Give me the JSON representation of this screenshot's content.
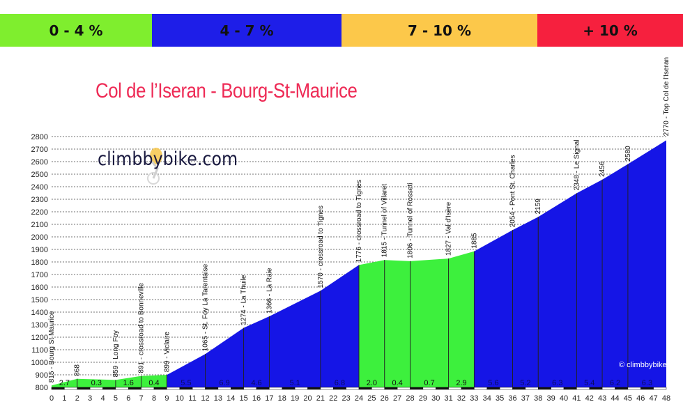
{
  "legend": [
    {
      "label": "0 - 4 %",
      "color": "#7fee2e"
    },
    {
      "label": "4 - 7 %",
      "color": "#1e1ee8"
    },
    {
      "label": "7 - 10 %",
      "color": "#fcc84a"
    },
    {
      "label": "+ 10 %",
      "color": "#f6203e"
    }
  ],
  "colors": {
    "easy": "#3df03d",
    "moderate": "#1515e6",
    "title": "#ee2a55"
  },
  "watermark": "climbbybike.com",
  "credit": "© climbbybike",
  "chart_data": {
    "type": "area",
    "title": "Col de l’Iseran - Bourg-St-Maurice",
    "xlim": [
      0,
      48
    ],
    "ylim": [
      800,
      2800
    ],
    "x_ticks": [
      0,
      1,
      2,
      3,
      4,
      5,
      6,
      7,
      8,
      9,
      10,
      11,
      12,
      13,
      14,
      15,
      16,
      17,
      18,
      19,
      20,
      21,
      22,
      23,
      24,
      25,
      26,
      27,
      28,
      29,
      30,
      31,
      32,
      33,
      34,
      35,
      36,
      37,
      38,
      39,
      40,
      41,
      42,
      43,
      44,
      45,
      46,
      47,
      48
    ],
    "y_ticks": [
      800,
      900,
      1000,
      1100,
      1200,
      1300,
      1400,
      1500,
      1600,
      1700,
      1800,
      1900,
      2000,
      2100,
      2200,
      2300,
      2400,
      2500,
      2600,
      2700,
      2800
    ],
    "profile": [
      {
        "x": 0,
        "y": 815
      },
      {
        "x": 2,
        "y": 868
      },
      {
        "x": 3,
        "y": 865
      },
      {
        "x": 5,
        "y": 859
      },
      {
        "x": 7,
        "y": 891
      },
      {
        "x": 9,
        "y": 899
      },
      {
        "x": 12,
        "y": 1065
      },
      {
        "x": 15,
        "y": 1274
      },
      {
        "x": 17,
        "y": 1366
      },
      {
        "x": 21,
        "y": 1570
      },
      {
        "x": 24,
        "y": 1776
      },
      {
        "x": 26,
        "y": 1815
      },
      {
        "x": 28,
        "y": 1806
      },
      {
        "x": 31,
        "y": 1827
      },
      {
        "x": 33,
        "y": 1885
      },
      {
        "x": 36,
        "y": 2054
      },
      {
        "x": 38,
        "y": 2159
      },
      {
        "x": 41,
        "y": 2348
      },
      {
        "x": 43,
        "y": 2456
      },
      {
        "x": 45,
        "y": 2580
      },
      {
        "x": 48,
        "y": 2770
      }
    ],
    "segments": [
      {
        "from": 0,
        "to": 2,
        "gradient": "2.7",
        "class": "easy"
      },
      {
        "from": 2,
        "to": 5,
        "gradient": "0.3",
        "class": "easy"
      },
      {
        "from": 5,
        "to": 7,
        "gradient": "1.6",
        "class": "easy"
      },
      {
        "from": 7,
        "to": 9,
        "gradient": "0.4",
        "class": "easy"
      },
      {
        "from": 9,
        "to": 12,
        "gradient": "5.5",
        "class": "moderate"
      },
      {
        "from": 12,
        "to": 15,
        "gradient": "6.9",
        "class": "moderate"
      },
      {
        "from": 15,
        "to": 17,
        "gradient": "4.6",
        "class": "moderate"
      },
      {
        "from": 17,
        "to": 21,
        "gradient": "5.1",
        "class": "moderate"
      },
      {
        "from": 21,
        "to": 24,
        "gradient": "6.8",
        "class": "moderate"
      },
      {
        "from": 24,
        "to": 26,
        "gradient": "2.0",
        "class": "easy"
      },
      {
        "from": 26,
        "to": 28,
        "gradient": "0.4",
        "class": "easy"
      },
      {
        "from": 28,
        "to": 31,
        "gradient": "0.7",
        "class": "easy"
      },
      {
        "from": 31,
        "to": 33,
        "gradient": "2.9",
        "class": "easy"
      },
      {
        "from": 33,
        "to": 36,
        "gradient": "5.6",
        "class": "moderate"
      },
      {
        "from": 36,
        "to": 38,
        "gradient": "5.2",
        "class": "moderate"
      },
      {
        "from": 38,
        "to": 41,
        "gradient": "6.3",
        "class": "moderate"
      },
      {
        "from": 41,
        "to": 43,
        "gradient": "5.4",
        "class": "moderate"
      },
      {
        "from": 43,
        "to": 45,
        "gradient": "6.2",
        "class": "moderate"
      },
      {
        "from": 45,
        "to": 48,
        "gradient": "6.3",
        "class": "moderate"
      }
    ],
    "annotations": [
      {
        "x": 0,
        "y": 815,
        "label": "815 - Bourg St Maurice"
      },
      {
        "x": 2,
        "y": 868,
        "label": "868"
      },
      {
        "x": 5,
        "y": 859,
        "label": "859 - Long Foy"
      },
      {
        "x": 7,
        "y": 891,
        "label": "891 - crossroad to Bonneville"
      },
      {
        "x": 9,
        "y": 899,
        "label": "899 - Viclaire"
      },
      {
        "x": 12,
        "y": 1065,
        "label": "1065 - St. Foy La Tarentaise"
      },
      {
        "x": 15,
        "y": 1274,
        "label": "1274 - La Thuile"
      },
      {
        "x": 17,
        "y": 1366,
        "label": "1366 - La Raie"
      },
      {
        "x": 21,
        "y": 1570,
        "label": "1570 - crossroad to Tignes"
      },
      {
        "x": 24,
        "y": 1776,
        "label": "1776 - crossroad to Tignes"
      },
      {
        "x": 26,
        "y": 1815,
        "label": "1815 - Tunnel of Villaret"
      },
      {
        "x": 28,
        "y": 1806,
        "label": "1806 - Tunnel of Rosseti"
      },
      {
        "x": 31,
        "y": 1827,
        "label": "1827 - Val d'Isère"
      },
      {
        "x": 33,
        "y": 1885,
        "label": "1885"
      },
      {
        "x": 36,
        "y": 2054,
        "label": "2054 - Pont St. Charles"
      },
      {
        "x": 38,
        "y": 2159,
        "label": "2159"
      },
      {
        "x": 41,
        "y": 2348,
        "label": "2348 - Le Signal"
      },
      {
        "x": 43,
        "y": 2456,
        "label": "2456"
      },
      {
        "x": 45,
        "y": 2580,
        "label": "2580"
      },
      {
        "x": 48,
        "y": 2770,
        "label": "2770 - Top Col de l'Iseran"
      }
    ]
  }
}
